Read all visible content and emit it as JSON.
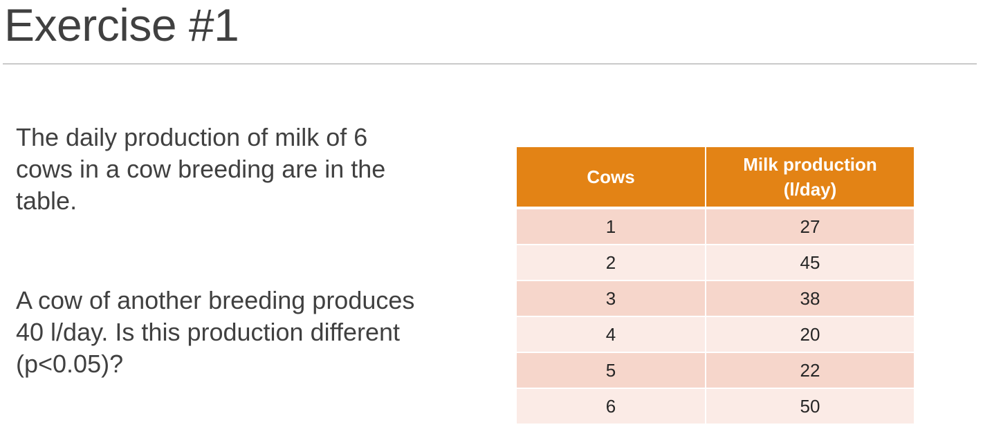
{
  "slide": {
    "title": "Exercise #1",
    "paragraph_1": "The daily production of milk of 6 cows in a cow breeding are in the table.",
    "paragraph_2": "A cow of another breeding produces 40 l/day. Is this production different (p<0.05)?"
  },
  "table": {
    "header_cows": "Cows",
    "header_milk_line1": "Milk production",
    "header_milk_line2": "(l/day)",
    "header_color": "#e38315",
    "row_color_odd": "#f6d6cb",
    "row_color_even": "#fbebe6",
    "rows": [
      {
        "cow": "1",
        "milk": "27"
      },
      {
        "cow": "2",
        "milk": "45"
      },
      {
        "cow": "3",
        "milk": "38"
      },
      {
        "cow": "4",
        "milk": "20"
      },
      {
        "cow": "5",
        "milk": "22"
      },
      {
        "cow": "6",
        "milk": "50"
      }
    ]
  }
}
